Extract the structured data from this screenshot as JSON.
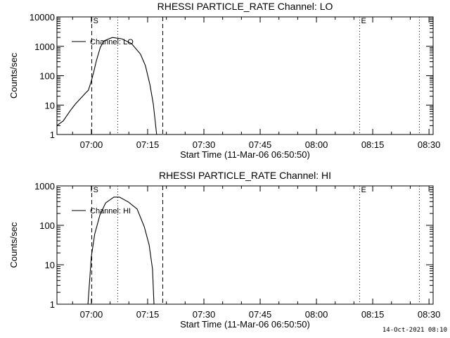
{
  "chart_data": [
    {
      "type": "line",
      "title": "RHESSI PARTICLE_RATE Channel: LO",
      "xlabel": "Start Time (11-Mar-06 06:50:50)",
      "ylabel": "Counts/sec",
      "yscale": "log",
      "ylim": [
        1,
        10000
      ],
      "y_tick_labels": [
        "1",
        "10",
        "100",
        "1000",
        "10000"
      ],
      "x_unit": "minutes after 07:00",
      "xlim": [
        -9.17,
        91.1
      ],
      "x_tick_labels": [
        "07:00",
        "07:15",
        "07:30",
        "07:45",
        "08:00",
        "08:15",
        "08:30"
      ],
      "legend": {
        "entries": [
          "Channel: LO"
        ],
        "placement": "top-left"
      },
      "markers": [
        {
          "label": "S",
          "x": 0,
          "style": "dashed"
        },
        {
          "label": "",
          "x": 7,
          "style": "dotted"
        },
        {
          "label": "",
          "x": 19,
          "style": "dashed"
        },
        {
          "label": "E",
          "x": 71.4,
          "style": "dotted"
        },
        {
          "label": "",
          "x": 87.4,
          "style": "dotted"
        }
      ],
      "series": [
        {
          "name": "Channel: LO",
          "x": [
            -9.2,
            -7.5,
            -5.6,
            -4.3,
            -1.5,
            -0.8,
            0,
            0.6,
            1.3,
            2.4,
            3.4,
            5.6,
            8.1,
            10.7,
            13.1,
            14.4,
            15.6,
            16.5,
            17.4
          ],
          "y": [
            2,
            2.9,
            6.5,
            10.7,
            26,
            32,
            66,
            128,
            310,
            930,
            1530,
            2000,
            1800,
            1240,
            540,
            220,
            50,
            11,
            1
          ]
        }
      ]
    },
    {
      "type": "line",
      "title": "RHESSI PARTICLE_RATE Channel: HI",
      "xlabel": "Start Time (11-Mar-06 06:50:50)",
      "ylabel": "Counts/sec",
      "yscale": "log",
      "ylim": [
        1,
        1000
      ],
      "y_tick_labels": [
        "1",
        "10",
        "100",
        "1000"
      ],
      "x_unit": "minutes after 07:00",
      "xlim": [
        -9.17,
        91.1
      ],
      "x_tick_labels": [
        "07:00",
        "07:15",
        "07:30",
        "07:45",
        "08:00",
        "08:15",
        "08:30"
      ],
      "legend": {
        "entries": [
          "Channel: HI"
        ],
        "placement": "top-left"
      },
      "markers": [
        {
          "label": "S",
          "x": 0,
          "style": "dashed"
        },
        {
          "label": "",
          "x": 7,
          "style": "dotted"
        },
        {
          "label": "",
          "x": 19,
          "style": "dashed"
        },
        {
          "label": "E",
          "x": 71.4,
          "style": "dotted"
        },
        {
          "label": "",
          "x": 87.4,
          "style": "dotted"
        }
      ],
      "series": [
        {
          "name": "Channel: HI",
          "x": [
            -0.9,
            0,
            0.9,
            2.3,
            3.8,
            6,
            7.5,
            9.9,
            12.2,
            14.1,
            15.4,
            16.3,
            16.7
          ],
          "y": [
            1,
            16,
            60,
            185,
            370,
            520,
            520,
            390,
            260,
            92,
            32,
            7.8,
            1
          ]
        }
      ]
    }
  ],
  "footer": "14-Oct-2021 08:10"
}
